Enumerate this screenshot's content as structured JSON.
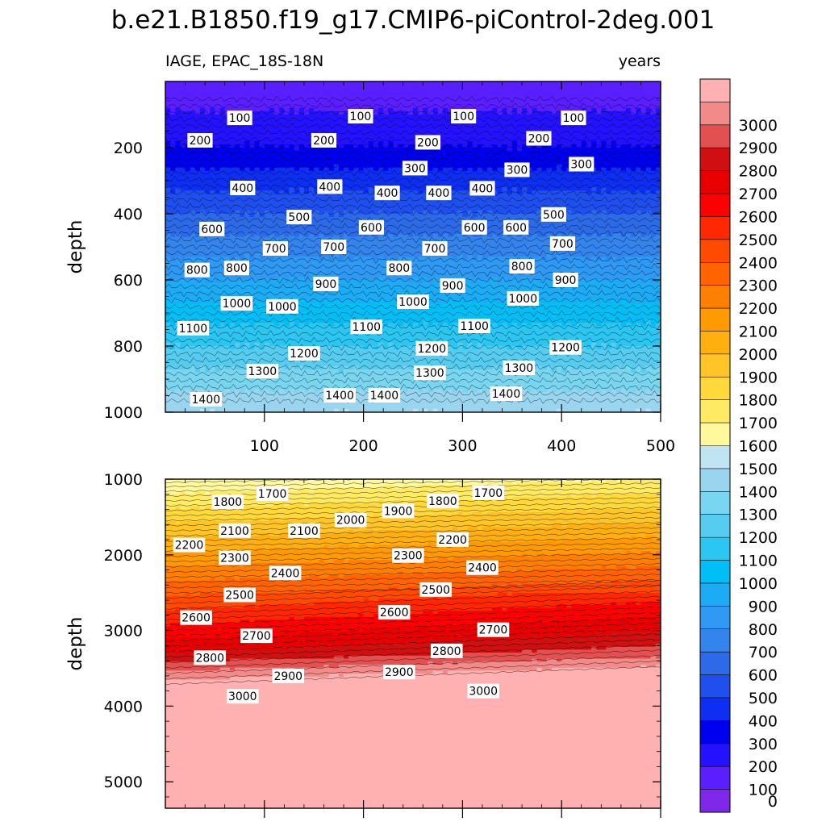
{
  "chart_data": {
    "type": "heatmap",
    "title": "b.e21.B1850.f19_g17.CMIP6-piControl-2deg.001",
    "variable_label": "IAGE, EPAC_18S-18N",
    "units_label": "years",
    "xlabel": "",
    "ylabel": "depth",
    "xlim": [
      0,
      500
    ],
    "x_ticks": [
      100,
      200,
      300,
      400,
      500
    ],
    "panels": [
      {
        "name": "upper",
        "ylim": [
          0,
          1000
        ],
        "y_ticks": [
          200,
          400,
          600,
          800,
          1000
        ],
        "contour_labels": [
          {
            "x": 75,
            "y": 110,
            "text": "100"
          },
          {
            "x": 197,
            "y": 105,
            "text": "100"
          },
          {
            "x": 301,
            "y": 105,
            "text": "100"
          },
          {
            "x": 412,
            "y": 110,
            "text": "100"
          },
          {
            "x": 35,
            "y": 178,
            "text": "200"
          },
          {
            "x": 160,
            "y": 178,
            "text": "200"
          },
          {
            "x": 265,
            "y": 184,
            "text": "200"
          },
          {
            "x": 377,
            "y": 172,
            "text": "200"
          },
          {
            "x": 252,
            "y": 262,
            "text": "300"
          },
          {
            "x": 355,
            "y": 267,
            "text": "300"
          },
          {
            "x": 420,
            "y": 250,
            "text": "300"
          },
          {
            "x": 78,
            "y": 322,
            "text": "400"
          },
          {
            "x": 166,
            "y": 318,
            "text": "400"
          },
          {
            "x": 224,
            "y": 337,
            "text": "400"
          },
          {
            "x": 276,
            "y": 337,
            "text": "400"
          },
          {
            "x": 320,
            "y": 323,
            "text": "400"
          },
          {
            "x": 135,
            "y": 410,
            "text": "500"
          },
          {
            "x": 392,
            "y": 402,
            "text": "500"
          },
          {
            "x": 47,
            "y": 446,
            "text": "600"
          },
          {
            "x": 208,
            "y": 441,
            "text": "600"
          },
          {
            "x": 312,
            "y": 441,
            "text": "600"
          },
          {
            "x": 354,
            "y": 441,
            "text": "600"
          },
          {
            "x": 111,
            "y": 505,
            "text": "700"
          },
          {
            "x": 170,
            "y": 500,
            "text": "700"
          },
          {
            "x": 272,
            "y": 505,
            "text": "700"
          },
          {
            "x": 401,
            "y": 490,
            "text": "700"
          },
          {
            "x": 32,
            "y": 570,
            "text": "800"
          },
          {
            "x": 72,
            "y": 564,
            "text": "800"
          },
          {
            "x": 236,
            "y": 564,
            "text": "800"
          },
          {
            "x": 360,
            "y": 559,
            "text": "800"
          },
          {
            "x": 162,
            "y": 612,
            "text": "900"
          },
          {
            "x": 290,
            "y": 617,
            "text": "900"
          },
          {
            "x": 404,
            "y": 600,
            "text": "900"
          },
          {
            "x": 72,
            "y": 671,
            "text": "1000"
          },
          {
            "x": 118,
            "y": 680,
            "text": "1000"
          },
          {
            "x": 250,
            "y": 666,
            "text": "1000"
          },
          {
            "x": 361,
            "y": 656,
            "text": "1000"
          },
          {
            "x": 28,
            "y": 746,
            "text": "1100"
          },
          {
            "x": 203,
            "y": 742,
            "text": "1100"
          },
          {
            "x": 312,
            "y": 739,
            "text": "1100"
          },
          {
            "x": 140,
            "y": 822,
            "text": "1200"
          },
          {
            "x": 269,
            "y": 807,
            "text": "1200"
          },
          {
            "x": 404,
            "y": 804,
            "text": "1200"
          },
          {
            "x": 98,
            "y": 876,
            "text": "1300"
          },
          {
            "x": 267,
            "y": 881,
            "text": "1300"
          },
          {
            "x": 357,
            "y": 866,
            "text": "1300"
          },
          {
            "x": 41,
            "y": 961,
            "text": "1400"
          },
          {
            "x": 176,
            "y": 949,
            "text": "1400"
          },
          {
            "x": 221,
            "y": 949,
            "text": "1400"
          },
          {
            "x": 344,
            "y": 944,
            "text": "1400"
          }
        ]
      },
      {
        "name": "lower",
        "ylim": [
          1000,
          5350
        ],
        "y_ticks": [
          1000,
          2000,
          3000,
          4000,
          5000
        ],
        "contour_labels": [
          {
            "x": 108,
            "y": 1190,
            "text": "1700"
          },
          {
            "x": 326,
            "y": 1180,
            "text": "1700"
          },
          {
            "x": 63,
            "y": 1300,
            "text": "1800"
          },
          {
            "x": 280,
            "y": 1290,
            "text": "1800"
          },
          {
            "x": 187,
            "y": 1540,
            "text": "2000"
          },
          {
            "x": 235,
            "y": 1420,
            "text": "1900"
          },
          {
            "x": 70,
            "y": 1680,
            "text": "2100"
          },
          {
            "x": 140,
            "y": 1680,
            "text": "2100"
          },
          {
            "x": 24,
            "y": 1870,
            "text": "2200"
          },
          {
            "x": 290,
            "y": 1800,
            "text": "2200"
          },
          {
            "x": 70,
            "y": 2040,
            "text": "2300"
          },
          {
            "x": 245,
            "y": 2010,
            "text": "2300"
          },
          {
            "x": 121,
            "y": 2240,
            "text": "2400"
          },
          {
            "x": 320,
            "y": 2170,
            "text": "2400"
          },
          {
            "x": 75,
            "y": 2530,
            "text": "2500"
          },
          {
            "x": 273,
            "y": 2460,
            "text": "2500"
          },
          {
            "x": 31,
            "y": 2830,
            "text": "2600"
          },
          {
            "x": 231,
            "y": 2760,
            "text": "2600"
          },
          {
            "x": 92,
            "y": 3070,
            "text": "2700"
          },
          {
            "x": 331,
            "y": 2990,
            "text": "2700"
          },
          {
            "x": 45,
            "y": 3360,
            "text": "2800"
          },
          {
            "x": 284,
            "y": 3270,
            "text": "2800"
          },
          {
            "x": 124,
            "y": 3600,
            "text": "2900"
          },
          {
            "x": 236,
            "y": 3550,
            "text": "2900"
          },
          {
            "x": 78,
            "y": 3870,
            "text": "3000"
          },
          {
            "x": 321,
            "y": 3800,
            "text": "3000"
          }
        ]
      }
    ],
    "colorbar": {
      "levels": [
        0,
        100,
        200,
        300,
        400,
        500,
        600,
        700,
        800,
        900,
        1000,
        1100,
        1200,
        1300,
        1400,
        1500,
        1600,
        1700,
        1800,
        1900,
        2000,
        2100,
        2200,
        2300,
        2400,
        2500,
        2600,
        2700,
        2800,
        2900,
        3000
      ],
      "colors": [
        "#7f28ea",
        "#5a1eff",
        "#2412ff",
        "#0000f0",
        "#0e2ff2",
        "#1f4fee",
        "#2c6ae8",
        "#3484ee",
        "#2f99f3",
        "#1cacf6",
        "#00bff7",
        "#2bc6f2",
        "#56cdf0",
        "#79d6f1",
        "#9ad5ef",
        "#c1e4f2",
        "#fff89c",
        "#ffea64",
        "#ffd83b",
        "#ffc527",
        "#ffb00f",
        "#ff9a00",
        "#ff8000",
        "#ff6400",
        "#ff4a00",
        "#ff2800",
        "#ff0000",
        "#e80000",
        "#d01010",
        "#e25050",
        "#f38a8a",
        "#ffb1b1"
      ]
    }
  }
}
